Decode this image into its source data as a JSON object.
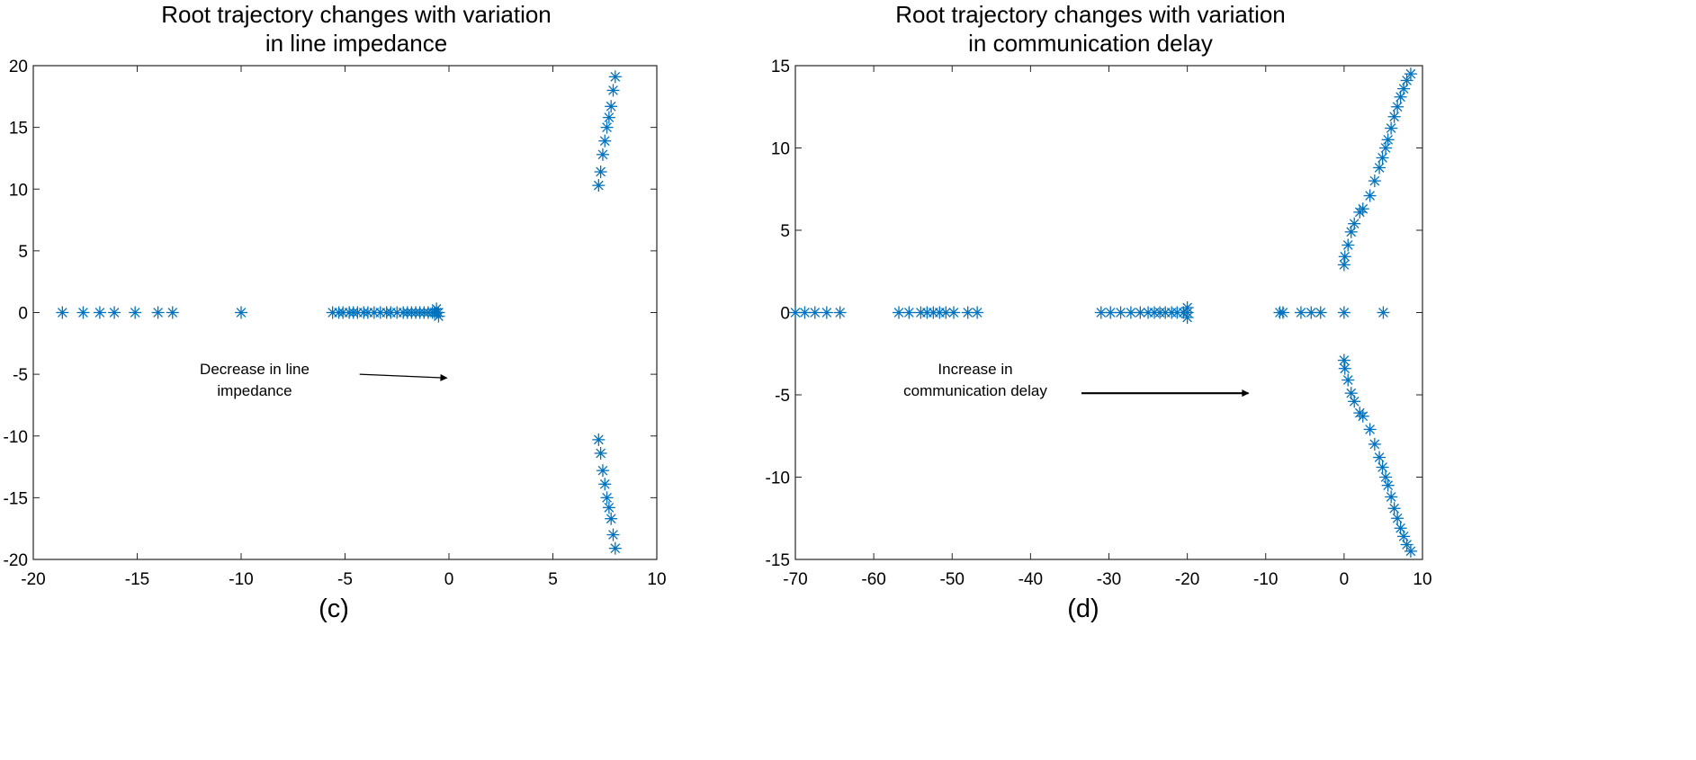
{
  "colors": {
    "marker": "#0072BD",
    "axis": "#262626",
    "text": "#000000"
  },
  "chart_data": [
    {
      "type": "scatter",
      "panel_label": "(c)",
      "title_lines": [
        "Root trajectory changes with variation",
        "in line impedance"
      ],
      "xlim": [
        -20,
        10
      ],
      "ylim": [
        -20,
        20
      ],
      "xticks": [
        -20,
        -15,
        -10,
        -5,
        0,
        5,
        10
      ],
      "yticks": [
        -20,
        -15,
        -10,
        -5,
        0,
        5,
        10,
        15,
        20
      ],
      "marker": "asterisk",
      "annotation": {
        "lines": [
          "Decrease in line",
          "impedance"
        ],
        "arrow_from": [
          -4.3,
          -5.0
        ],
        "arrow_to": [
          -0.1,
          -5.3
        ]
      },
      "series": [
        {
          "name": "roots",
          "x": [
            -18.6,
            -17.6,
            -16.8,
            -16.1,
            -15.1,
            -14.0,
            -13.3,
            -10.0,
            -5.6,
            -5.3,
            -5.1,
            -4.8,
            -4.6,
            -4.4,
            -4.1,
            -3.9,
            -3.6,
            -3.3,
            -3.0,
            -2.8,
            -2.5,
            -2.2,
            -2.0,
            -1.8,
            -1.6,
            -1.4,
            -1.2,
            -1.0,
            -0.8,
            -0.7,
            -0.6,
            -0.5,
            -0.6,
            -0.5,
            7.2,
            7.3,
            7.4,
            7.5,
            7.6,
            7.7,
            7.8,
            7.9,
            7.2,
            7.3,
            7.4,
            7.5,
            7.6,
            7.7,
            7.8,
            7.9
          ],
          "y": [
            0,
            0,
            0,
            0,
            0,
            0,
            0,
            0,
            0,
            0,
            0,
            0,
            0,
            0,
            0,
            0,
            0,
            0,
            0,
            0,
            0,
            0,
            0,
            0,
            0,
            0,
            0,
            0,
            0,
            0,
            0,
            0,
            0.3,
            -0.3,
            10.3,
            11.4,
            12.8,
            13.9,
            15.0,
            15.8,
            16.7,
            18.0,
            -10.3,
            -11.4,
            -12.8,
            -13.9,
            -15.0,
            -15.8,
            -16.7,
            -18.0
          ]
        },
        {
          "name": "roots-end",
          "x": [
            8.0,
            8.0
          ],
          "y": [
            19.1,
            -19.1
          ]
        }
      ]
    },
    {
      "type": "scatter",
      "panel_label": "(d)",
      "title_lines": [
        "Root trajectory changes with variation",
        "in communication delay"
      ],
      "xlim": [
        -70,
        10
      ],
      "ylim": [
        -15,
        15
      ],
      "xticks": [
        -70,
        -60,
        -50,
        -40,
        -30,
        -20,
        -10,
        0,
        10
      ],
      "yticks": [
        -15,
        -10,
        -5,
        0,
        5,
        10,
        15
      ],
      "marker": "asterisk",
      "annotation": {
        "lines": [
          "Increase in",
          "communication delay"
        ],
        "arrow_from": [
          -33.5,
          -4.9
        ],
        "arrow_to": [
          -12.2,
          -4.9
        ]
      },
      "series": [
        {
          "name": "roots",
          "x": [
            -70.0,
            -68.8,
            -67.5,
            -66.0,
            -64.3,
            -56.8,
            -55.5,
            -54.0,
            -53.2,
            -52.4,
            -51.6,
            -50.8,
            -49.8,
            -48.0,
            -46.8,
            -31.0,
            -29.8,
            -28.5,
            -27.2,
            -26.0,
            -25.0,
            -24.2,
            -23.5,
            -22.8,
            -22.0,
            -21.3,
            -20.5,
            -20.0,
            -20.0,
            -20.0,
            -8.2,
            -7.8,
            -5.5,
            -4.2,
            -3.0,
            0.0,
            5.0,
            0.0,
            0.1,
            0.5,
            0.9,
            1.3,
            2.0,
            2.4,
            3.3,
            3.9,
            4.5,
            4.9,
            5.3,
            5.6,
            6.0,
            6.4,
            6.8,
            7.2,
            7.6,
            8.0,
            8.5,
            0.0,
            0.1,
            0.5,
            0.9,
            1.3,
            2.0,
            2.4,
            3.3,
            3.9,
            4.5,
            4.9,
            5.3,
            5.6,
            6.0,
            6.4,
            6.8,
            7.2,
            7.6,
            8.0,
            8.5
          ],
          "y": [
            0,
            0,
            0,
            0,
            0,
            0,
            0,
            0,
            0,
            0,
            0,
            0,
            0,
            0,
            0,
            0,
            0,
            0,
            0,
            0,
            0,
            0,
            0,
            0,
            0,
            0,
            0,
            0,
            0.3,
            -0.3,
            0,
            0,
            0,
            0,
            0,
            0,
            0,
            2.9,
            3.4,
            4.1,
            4.9,
            5.4,
            6.1,
            6.3,
            7.1,
            8.0,
            8.8,
            9.4,
            10.0,
            10.5,
            11.2,
            11.9,
            12.5,
            13.1,
            13.6,
            14.1,
            14.5,
            -2.9,
            -3.4,
            -4.1,
            -4.9,
            -5.4,
            -6.1,
            -6.3,
            -7.1,
            -8.0,
            -8.8,
            -9.4,
            -10.0,
            -10.5,
            -11.2,
            -11.9,
            -12.5,
            -13.1,
            -13.6,
            -14.1,
            -14.5
          ]
        }
      ]
    }
  ]
}
